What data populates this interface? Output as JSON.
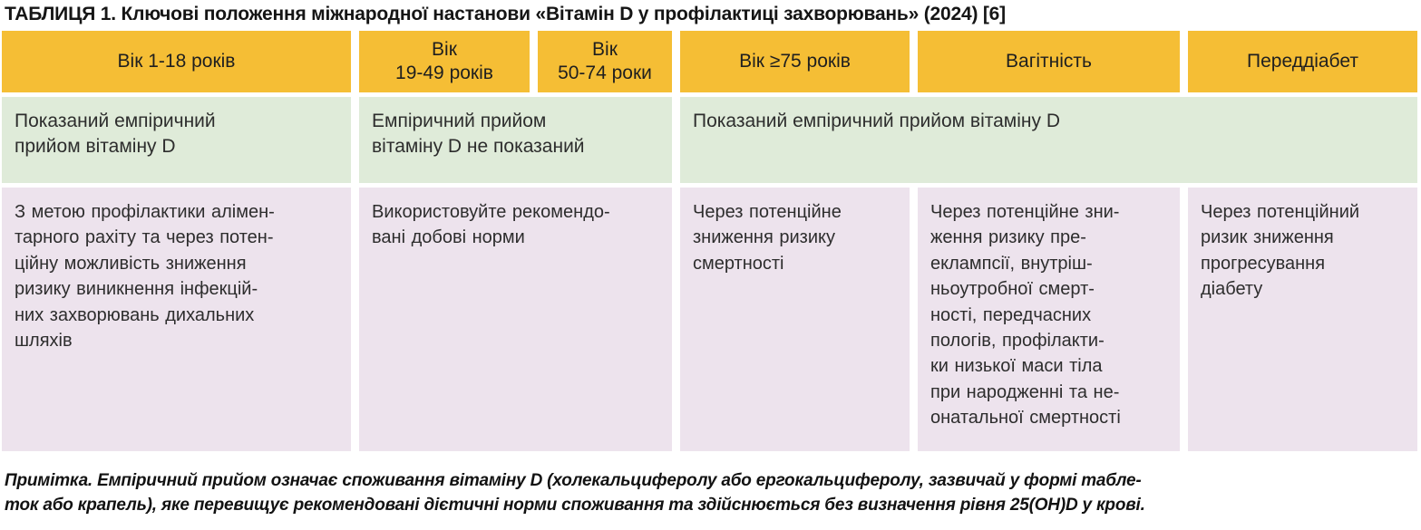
{
  "title": "ТАБЛИЦЯ 1. Ключові положення міжнародної настанови «Вітамін D у профілактиці захворювань» (2024) [6]",
  "colors": {
    "header_bg": "#f5be35",
    "indication_row_bg": "#dfebd9",
    "detail_row_bg": "#ede3ed",
    "text": "#2d2d2d"
  },
  "table": {
    "headers": [
      {
        "label": "Вік 1-18 років"
      },
      {
        "label": "Вік\n19-49 років"
      },
      {
        "label": "Вік\n50-74 роки"
      },
      {
        "label": "Вік ≥75 років"
      },
      {
        "label": "Вагітність"
      },
      {
        "label": "Переддіабет"
      }
    ],
    "indication_row": {
      "age_1_18": "Показаний емпіричний\nприйом вітаміну D",
      "age_19_74": "Емпіричний прийом\nвітаміну D не показаний",
      "age_75_pregnancy_prediabetes": "Показаний емпіричний прийом вітаміну D"
    },
    "detail_row": {
      "age_1_18": "З метою профілактики алімен-\nтарного рахіту та через потен-\nційну можливість зниження\nризику виникнення інфекцій-\nних захворювань дихальних\nшляхів",
      "age_19_74": "Використовуйте рекомендо-\nвані добові норми",
      "age_75": "Через потенційне\nзниження ризику\nсмертності",
      "pregnancy": "Через потенційне зни-\nження ризику пре-\nеклампсії, внутріш-\nньоутробної смерт-\nності, передчасних\nпологів, профілакти-\nки низької маси тіла\nпри народженні та не-\nонатальної смертності",
      "prediabetes": "Через потенційний\nризик зниження\nпрогресування\nдіабету"
    }
  },
  "footnote": "Примітка. Емпіричний прийом означає споживання вітаміну D (холекальциферолу або ергокальциферолу, зазвичай у формі табле-\nток або крапель), яке перевищує рекомендовані дієтичні норми споживання та здійснюється без визначення рівня 25(OH)D у крові."
}
